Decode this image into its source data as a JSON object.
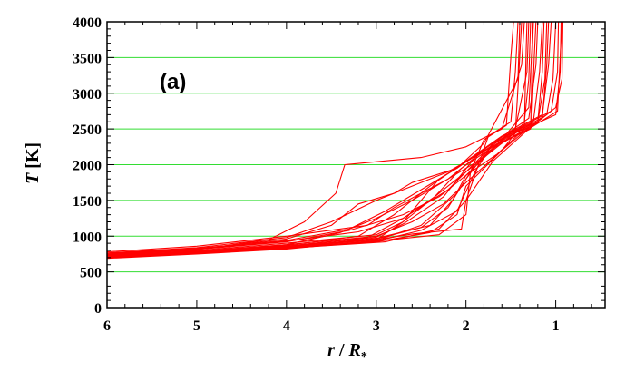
{
  "chart_data": {
    "type": "line",
    "panel_label": "(a)",
    "xlabel": {
      "var": "r",
      "sep": " / ",
      "sub_var": "R",
      "sub": "*"
    },
    "ylabel": {
      "var": "T",
      "unit": " [K]"
    },
    "xlim": [
      6.0,
      0.45
    ],
    "ylim": [
      0,
      4000
    ],
    "x_reversed": true,
    "xticks": [
      6,
      5,
      4,
      3,
      2,
      1
    ],
    "yticks": [
      0,
      500,
      1000,
      1500,
      2000,
      2500,
      3000,
      3500,
      4000
    ],
    "x_minor_step": 0.2,
    "y_minor_step": 100,
    "grid": {
      "horizontal": true,
      "vertical": false,
      "color": "#33dd33"
    },
    "line_color": "#ff0000",
    "series": [
      {
        "x": [
          6.0,
          5.0,
          4.0,
          3.0,
          2.4,
          2.1,
          2.0,
          1.6,
          1.35,
          1.3,
          1.28
        ],
        "y": [
          700,
          760,
          830,
          920,
          1050,
          1300,
          1700,
          2200,
          2600,
          3200,
          4000
        ]
      },
      {
        "x": [
          6.0,
          5.0,
          4.0,
          3.0,
          2.5,
          2.2,
          2.0,
          1.7,
          1.3,
          1.22,
          1.2
        ],
        "y": [
          710,
          770,
          850,
          960,
          1120,
          1400,
          1800,
          2300,
          2650,
          3400,
          4000
        ]
      },
      {
        "x": [
          6.0,
          5.0,
          4.0,
          3.4,
          3.0,
          2.6,
          2.2,
          1.9,
          1.45,
          1.32,
          1.3
        ],
        "y": [
          720,
          790,
          880,
          1050,
          1250,
          1500,
          1800,
          2100,
          2500,
          3300,
          4000
        ]
      },
      {
        "x": [
          6.0,
          5.0,
          4.2,
          3.8,
          3.45,
          3.35,
          2.5,
          2.0,
          1.6,
          1.38,
          1.35
        ],
        "y": [
          730,
          810,
          950,
          1200,
          1600,
          2000,
          2100,
          2250,
          2500,
          3400,
          4000
        ]
      },
      {
        "x": [
          6.0,
          5.0,
          4.0,
          3.5,
          3.2,
          2.8,
          2.6,
          2.1,
          1.8,
          1.42,
          1.4
        ],
        "y": [
          740,
          820,
          960,
          1150,
          1450,
          1600,
          1750,
          1950,
          2300,
          3200,
          4000
        ]
      },
      {
        "x": [
          6.0,
          5.0,
          4.0,
          3.0,
          2.7,
          2.3,
          1.8,
          1.3,
          1.0,
          0.93,
          0.92
        ],
        "y": [
          700,
          760,
          840,
          950,
          1200,
          1800,
          2200,
          2500,
          2800,
          3200,
          4000
        ]
      },
      {
        "x": [
          6.0,
          5.0,
          4.0,
          3.0,
          2.5,
          2.1,
          1.9,
          1.5,
          1.05,
          0.98,
          0.97
        ],
        "y": [
          690,
          750,
          820,
          940,
          1150,
          1600,
          2000,
          2450,
          2750,
          3300,
          4000
        ]
      },
      {
        "x": [
          6.0,
          5.0,
          4.0,
          3.2,
          2.8,
          2.4,
          2.0,
          1.6,
          1.15,
          1.08,
          1.05
        ],
        "y": [
          710,
          780,
          870,
          1000,
          1300,
          1700,
          2050,
          2400,
          2700,
          3400,
          4000
        ]
      },
      {
        "x": [
          6.0,
          5.0,
          4.0,
          3.0,
          2.6,
          2.05,
          2.0,
          1.75,
          1.5,
          1.45,
          1.42
        ],
        "y": [
          720,
          780,
          860,
          950,
          1030,
          1100,
          1500,
          2400,
          2600,
          3300,
          4000
        ]
      },
      {
        "x": [
          6.0,
          5.0,
          4.0,
          3.0,
          2.3,
          2.0,
          1.95,
          1.8,
          1.55,
          1.5,
          1.47
        ],
        "y": [
          705,
          765,
          840,
          930,
          1020,
          1300,
          1900,
          2350,
          2550,
          3500,
          4000
        ]
      },
      {
        "x": [
          6.0,
          5.0,
          4.0,
          3.3,
          2.9,
          2.5,
          2.1,
          1.7,
          1.25,
          1.18,
          1.15
        ],
        "y": [
          760,
          830,
          940,
          1100,
          1350,
          1650,
          1950,
          2300,
          2600,
          3300,
          4000
        ]
      },
      {
        "x": [
          6.0,
          5.0,
          4.0,
          3.0,
          2.7,
          2.4,
          2.2,
          1.9,
          1.6,
          1.3,
          1.25
        ],
        "y": [
          735,
          800,
          900,
          1020,
          1200,
          1500,
          1700,
          2000,
          2350,
          2800,
          4000
        ]
      },
      {
        "x": [
          6.0,
          5.0,
          4.0,
          3.1,
          2.7,
          2.2,
          1.8,
          1.4,
          1.2,
          1.12,
          1.1
        ],
        "y": [
          715,
          780,
          860,
          980,
          1250,
          1650,
          2150,
          2450,
          2600,
          3200,
          4000
        ]
      },
      {
        "x": [
          6.0,
          5.0,
          4.0,
          2.9,
          2.3,
          2.0,
          1.7,
          1.3,
          0.98,
          0.95,
          0.93
        ],
        "y": [
          700,
          755,
          830,
          920,
          1100,
          1500,
          2050,
          2500,
          2750,
          3500,
          4000
        ]
      },
      {
        "x": [
          6.0,
          5.0,
          4.0,
          3.3,
          2.7,
          2.3,
          2.0,
          1.65,
          1.35,
          1.33,
          1.32
        ],
        "y": [
          745,
          815,
          920,
          1080,
          1300,
          1550,
          1850,
          2150,
          2500,
          3600,
          4000
        ]
      },
      {
        "x": [
          6.0,
          5.0,
          4.0,
          3.0,
          2.6,
          2.25,
          2.0,
          1.6,
          1.27,
          1.24,
          1.22
        ],
        "y": [
          725,
          790,
          880,
          1000,
          1200,
          1450,
          1750,
          2200,
          2550,
          3500,
          4000
        ]
      },
      {
        "x": [
          6.0,
          5.0,
          4.0,
          3.0,
          2.4,
          2.15,
          2.0,
          1.55,
          1.2,
          1.15,
          1.13
        ],
        "y": [
          705,
          770,
          850,
          970,
          1150,
          1500,
          1850,
          2400,
          2600,
          3300,
          4000
        ]
      },
      {
        "x": [
          6.0,
          5.0,
          4.0,
          3.1,
          2.8,
          2.5,
          2.2,
          1.8,
          1.45,
          1.41,
          1.38
        ],
        "y": [
          780,
          860,
          1000,
          1150,
          1400,
          1600,
          1800,
          2100,
          2450,
          3300,
          4000
        ]
      },
      {
        "x": [
          6.0,
          5.0,
          4.0,
          3.0,
          2.5,
          2.1,
          1.9,
          1.7,
          1.0,
          0.95,
          0.94
        ],
        "y": [
          695,
          755,
          830,
          930,
          1080,
          1350,
          1900,
          2300,
          2700,
          3300,
          4000
        ]
      },
      {
        "x": [
          6.0,
          5.0,
          4.0,
          3.2,
          2.7,
          2.35,
          2.05,
          1.7,
          1.28,
          1.26,
          1.25
        ],
        "y": [
          755,
          820,
          930,
          1060,
          1250,
          1550,
          1950,
          2250,
          2500,
          3600,
          4000
        ]
      },
      {
        "x": [
          6.0,
          5.0,
          4.0,
          3.5,
          3.0,
          2.6,
          2.2,
          1.85,
          1.1,
          1.03,
          1.0
        ],
        "y": [
          765,
          840,
          980,
          1200,
          1500,
          1700,
          1900,
          2150,
          2700,
          3200,
          4000
        ]
      },
      {
        "x": [
          6.0,
          5.0,
          4.0,
          3.0,
          2.7,
          2.25,
          1.9,
          1.5,
          1.15,
          1.1,
          1.08
        ],
        "y": [
          712,
          775,
          860,
          985,
          1170,
          1550,
          2100,
          2450,
          2650,
          3400,
          4000
        ]
      }
    ]
  }
}
